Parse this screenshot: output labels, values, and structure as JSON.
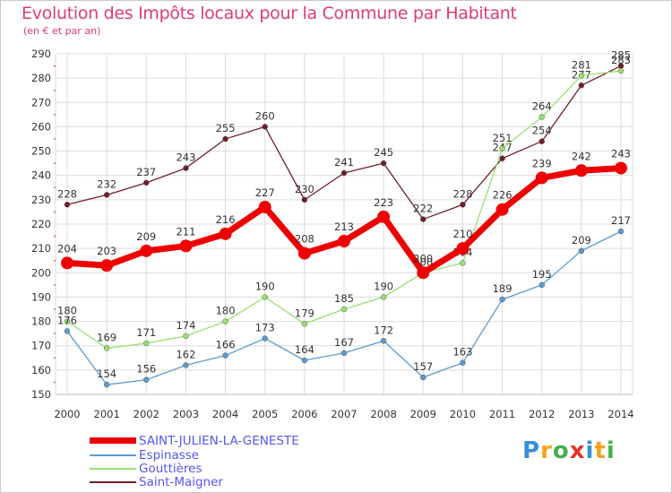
{
  "title": "Evolution des Impôts locaux pour la Commune par Habitant",
  "subtitle": "(en € et par an)",
  "logo": {
    "text": "Proxiti",
    "colors": [
      "#3a8fd6",
      "#f3a21f",
      "#44b04a",
      "#e2342d",
      "#3a8fd6",
      "#f3a21f",
      "#44b04a"
    ]
  },
  "chart_data": {
    "type": "line",
    "x": [
      "2000",
      "2001",
      "2002",
      "2003",
      "2004",
      "2005",
      "2006",
      "2007",
      "2008",
      "2009",
      "2010",
      "2011",
      "2012",
      "2013",
      "2014"
    ],
    "ylim": [
      150,
      290
    ],
    "yticks": [
      150,
      160,
      170,
      180,
      190,
      200,
      210,
      220,
      230,
      240,
      250,
      260,
      270,
      280,
      290
    ],
    "grid": true,
    "legend_position": "bottom-left",
    "series": [
      {
        "name": "Saint-Maigner",
        "color": "#6e1e2a",
        "values": [
          228,
          232,
          237,
          243,
          255,
          260,
          230,
          241,
          245,
          222,
          228,
          247,
          254,
          277,
          285
        ]
      },
      {
        "name": "Gouttières",
        "color": "#99e070",
        "values": [
          180,
          169,
          171,
          174,
          180,
          190,
          179,
          185,
          190,
          200,
          204,
          251,
          264,
          281,
          283
        ]
      },
      {
        "name": "Espinasse",
        "color": "#5b9bd0",
        "values": [
          176,
          154,
          156,
          162,
          166,
          173,
          164,
          167,
          172,
          157,
          163,
          189,
          195,
          209,
          217
        ]
      },
      {
        "name": "SAINT-JULIEN-LA-GENESTE",
        "color": "#ee0000",
        "values": [
          204,
          203,
          209,
          211,
          216,
          227,
          208,
          213,
          223,
          200,
          210,
          226,
          239,
          242,
          243
        ]
      }
    ]
  }
}
